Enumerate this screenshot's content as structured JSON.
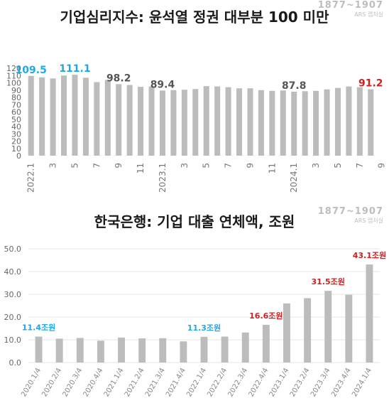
{
  "colors": {
    "bar": "#bcbcbc",
    "grid": "#e6e6e6",
    "highlight_blue": "#1fa8e8",
    "highlight_red": "#cc2222",
    "label_dark": "#555555"
  },
  "watermark": {
    "line1": "1877~1907",
    "line2": "ARS 캡처실"
  },
  "watermark2": {
    "line1": "1877~1907",
    "line2": "ARS 캡처실"
  },
  "chart_data": [
    {
      "type": "bar",
      "title": "기업심리지수: 윤석열 정권 대부분 100 미만",
      "ylim": [
        0,
        120
      ],
      "yticks": [
        0,
        10,
        20,
        30,
        40,
        50,
        60,
        70,
        80,
        90,
        100,
        110,
        120
      ],
      "grid": false,
      "values": [
        109.5,
        107.5,
        106,
        110,
        111.1,
        107,
        101,
        104,
        98.2,
        97,
        94.5,
        95,
        89.4,
        90,
        90.5,
        91.5,
        95.5,
        95,
        94,
        92.5,
        92.5,
        90,
        89,
        89.5,
        87.8,
        88.5,
        89,
        91,
        93,
        95,
        94,
        91.2
      ],
      "x_tick_labels": [
        "2022.1",
        "3",
        "5",
        "7",
        "9",
        "11",
        "2023.1",
        "3",
        "5",
        "7",
        "9",
        "11",
        "2024.1",
        "3",
        "5",
        "7",
        "9"
      ],
      "x_tick_every": 2,
      "data_labels": [
        {
          "index": 0,
          "text": "109.5",
          "color": "blue"
        },
        {
          "index": 4,
          "text": "111.1",
          "color": "blue"
        },
        {
          "index": 8,
          "text": "98.2",
          "color": "dark"
        },
        {
          "index": 12,
          "text": "89.4",
          "color": "dark"
        },
        {
          "index": 24,
          "text": "87.8",
          "color": "dark"
        },
        {
          "index": 31,
          "text": "91.2",
          "color": "red"
        }
      ]
    },
    {
      "type": "bar",
      "title": "한국은행: 기업 대출 연체액, 조원",
      "ylim": [
        0,
        50
      ],
      "yticks": [
        "0.0",
        "10.0",
        "20.0",
        "30.0",
        "40.0",
        "50.0"
      ],
      "grid": true,
      "categories": [
        "2020.1/4",
        "2020.2/4",
        "2020.3/4",
        "2020.4/4",
        "2021.1/4",
        "2021.2/4",
        "2021.3/4",
        "2021.4/4",
        "2022.1/4",
        "2022.2/4",
        "2022.3/4",
        "2022.4/4",
        "2023.1/4",
        "2023.2/4",
        "2023.3/4",
        "2023.4/4",
        "2024.1/4"
      ],
      "values": [
        11.4,
        10.5,
        10.8,
        9.6,
        11,
        10.6,
        10.7,
        9.3,
        11.3,
        11.4,
        13.2,
        16.6,
        26,
        28.3,
        31.5,
        29.8,
        43.1
      ],
      "data_labels": [
        {
          "index": 0,
          "text": "11.4조원",
          "color": "blue"
        },
        {
          "index": 8,
          "text": "11.3조원",
          "color": "blue"
        },
        {
          "index": 11,
          "text": "16.6조원",
          "color": "red"
        },
        {
          "index": 14,
          "text": "31.5조원",
          "color": "red"
        },
        {
          "index": 16,
          "text": "43.1조원",
          "color": "red"
        }
      ]
    }
  ]
}
